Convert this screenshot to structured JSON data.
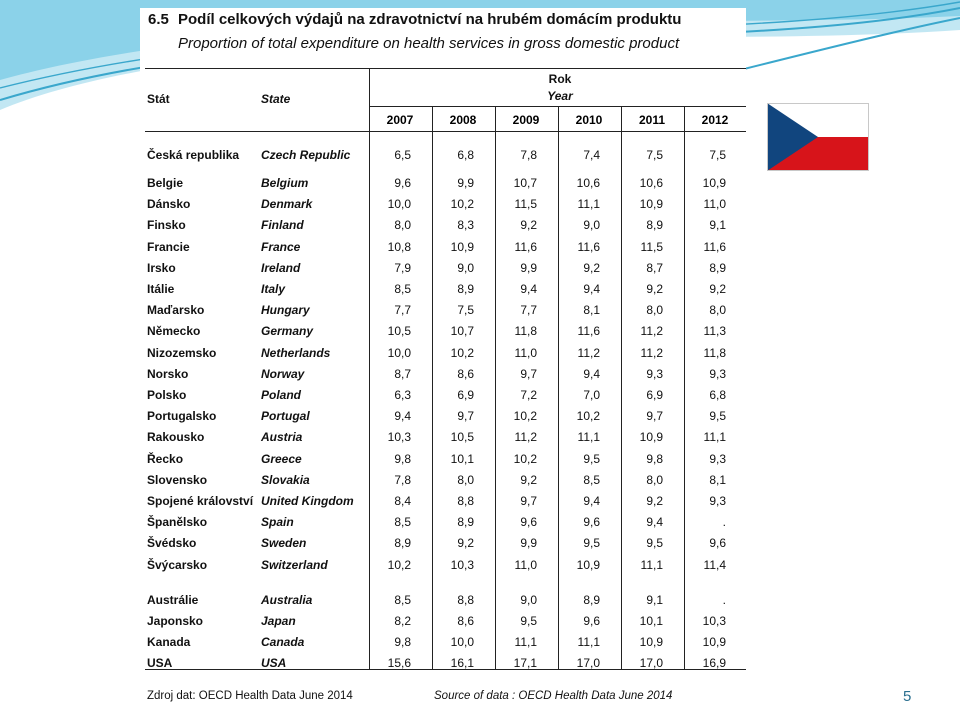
{
  "title": {
    "number": "6.5",
    "cz": "Podíl celkových výdajů na zdravotnictví na hrubém domácím produktu",
    "en": "Proportion of total expenditure on health services in gross domestic product"
  },
  "header": {
    "col_cz": "Stát",
    "col_en": "State",
    "year_cz": "Rok",
    "year_en": "Year",
    "years": [
      "2007",
      "2008",
      "2009",
      "2010",
      "2011",
      "2012"
    ]
  },
  "rows": [
    {
      "cz": "Česká republika",
      "en": "Czech Republic",
      "v": [
        "6,5",
        "6,8",
        "7,8",
        "7,4",
        "7,5",
        "7,5"
      ]
    },
    {
      "cz": "Belgie",
      "en": "Belgium",
      "v": [
        "9,6",
        "9,9",
        "10,7",
        "10,6",
        "10,6",
        "10,9"
      ]
    },
    {
      "cz": "Dánsko",
      "en": "Denmark",
      "v": [
        "10,0",
        "10,2",
        "11,5",
        "11,1",
        "10,9",
        "11,0"
      ]
    },
    {
      "cz": "Finsko",
      "en": "Finland",
      "v": [
        "8,0",
        "8,3",
        "9,2",
        "9,0",
        "8,9",
        "9,1"
      ]
    },
    {
      "cz": "Francie",
      "en": "France",
      "v": [
        "10,8",
        "10,9",
        "11,6",
        "11,6",
        "11,5",
        "11,6"
      ]
    },
    {
      "cz": "Irsko",
      "en": "Ireland",
      "v": [
        "7,9",
        "9,0",
        "9,9",
        "9,2",
        "8,7",
        "8,9"
      ]
    },
    {
      "cz": "Itálie",
      "en": "Italy",
      "v": [
        "8,5",
        "8,9",
        "9,4",
        "9,4",
        "9,2",
        "9,2"
      ]
    },
    {
      "cz": "Maďarsko",
      "en": "Hungary",
      "v": [
        "7,7",
        "7,5",
        "7,7",
        "8,1",
        "8,0",
        "8,0"
      ]
    },
    {
      "cz": "Německo",
      "en": "Germany",
      "v": [
        "10,5",
        "10,7",
        "11,8",
        "11,6",
        "11,2",
        "11,3"
      ]
    },
    {
      "cz": "Nizozemsko",
      "en": "Netherlands",
      "v": [
        "10,0",
        "10,2",
        "11,0",
        "11,2",
        "11,2",
        "11,8"
      ]
    },
    {
      "cz": "Norsko",
      "en": "Norway",
      "v": [
        "8,7",
        "8,6",
        "9,7",
        "9,4",
        "9,3",
        "9,3"
      ]
    },
    {
      "cz": "Polsko",
      "en": "Poland",
      "v": [
        "6,3",
        "6,9",
        "7,2",
        "7,0",
        "6,9",
        "6,8"
      ]
    },
    {
      "cz": "Portugalsko",
      "en": "Portugal",
      "v": [
        "9,4",
        "9,7",
        "10,2",
        "10,2",
        "9,7",
        "9,5"
      ]
    },
    {
      "cz": "Rakousko",
      "en": "Austria",
      "v": [
        "10,3",
        "10,5",
        "11,2",
        "11,1",
        "10,9",
        "11,1"
      ]
    },
    {
      "cz": "Řecko",
      "en": "Greece",
      "v": [
        "9,8",
        "10,1",
        "10,2",
        "9,5",
        "9,8",
        "9,3"
      ]
    },
    {
      "cz": "Slovensko",
      "en": "Slovakia",
      "v": [
        "7,8",
        "8,0",
        "9,2",
        "8,5",
        "8,0",
        "8,1"
      ]
    },
    {
      "cz": "Spojené království",
      "en": "United Kingdom",
      "v": [
        "8,4",
        "8,8",
        "9,7",
        "9,4",
        "9,2",
        "9,3"
      ]
    },
    {
      "cz": "Španělsko",
      "en": "Spain",
      "v": [
        "8,5",
        "8,9",
        "9,6",
        "9,6",
        "9,4",
        "."
      ]
    },
    {
      "cz": "Švédsko",
      "en": "Sweden",
      "v": [
        "8,9",
        "9,2",
        "9,9",
        "9,5",
        "9,5",
        "9,6"
      ]
    },
    {
      "cz": "Švýcarsko",
      "en": "Switzerland",
      "v": [
        "10,2",
        "10,3",
        "11,0",
        "10,9",
        "11,1",
        "11,4"
      ]
    },
    {
      "cz": "Austrálie",
      "en": "Australia",
      "v": [
        "8,5",
        "8,8",
        "9,0",
        "8,9",
        "9,1",
        "."
      ]
    },
    {
      "cz": "Japonsko",
      "en": "Japan",
      "v": [
        "8,2",
        "8,6",
        "9,5",
        "9,6",
        "10,1",
        "10,3"
      ]
    },
    {
      "cz": "Kanada",
      "en": "Canada",
      "v": [
        "9,8",
        "10,0",
        "11,1",
        "11,1",
        "10,9",
        "10,9"
      ]
    },
    {
      "cz": "USA",
      "en": "USA",
      "v": [
        "15,6",
        "16,1",
        "17,1",
        "17,0",
        "17,0",
        "16,9"
      ]
    }
  ],
  "source": {
    "cz": "Zdroj dat: OECD Health Data June 2014",
    "en": "Source of data : OECD Health Data June 2014"
  },
  "slide_number": "5",
  "colors": {
    "teal": "#4fb6d6",
    "flag_blue": "#11457e",
    "flag_red": "#d7141a"
  }
}
